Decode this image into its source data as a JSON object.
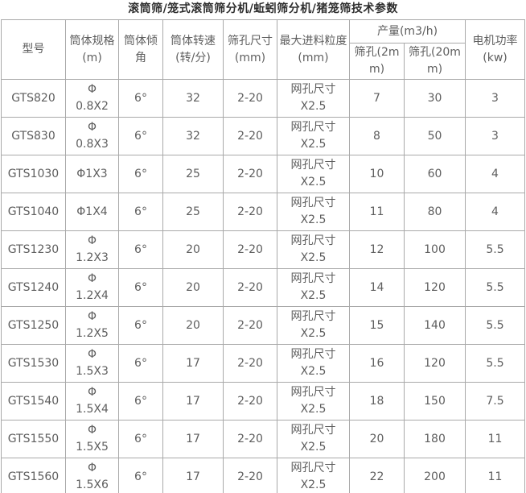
{
  "title": "滚筒筛/笼式滚筒筛分机/蚯蚓筛分机/猪笼筛技术参数",
  "table": {
    "headers": {
      "model": "型号",
      "spec": "筒体规格(m)",
      "incline": "筒体倾角",
      "speed": "筒体转速(转/分)",
      "hole": "筛孔尺寸(mm)",
      "feed": "最大进料粒度(mm)",
      "output_group": "产量(m3/h)",
      "output_2mm": "筛孔(2mm)",
      "output_20mm": "筛孔(20mm)",
      "power": "电机功率(kw)"
    },
    "rows": [
      {
        "model": "GTS820",
        "spec": "Φ\n0.8X2",
        "incline": "6°",
        "speed": "32",
        "hole": "2-20",
        "feed": "网孔尺寸\nX2.5",
        "out2": "7",
        "out20": "30",
        "power": "3"
      },
      {
        "model": "GTS830",
        "spec": "Φ\n0.8X3",
        "incline": "6°",
        "speed": "32",
        "hole": "2-20",
        "feed": "网孔尺寸\nX2.5",
        "out2": "8",
        "out20": "50",
        "power": "3"
      },
      {
        "model": "GTS1030",
        "spec": "Φ1X3",
        "incline": "6°",
        "speed": "25",
        "hole": "2-20",
        "feed": "网孔尺寸\nX2.5",
        "out2": "10",
        "out20": "60",
        "power": "4"
      },
      {
        "model": "GTS1040",
        "spec": "Φ1X4",
        "incline": "6°",
        "speed": "25",
        "hole": "2-20",
        "feed": "网孔尺寸\nX2.5",
        "out2": "11",
        "out20": "80",
        "power": "4"
      },
      {
        "model": "GTS1230",
        "spec": "Φ\n1.2X3",
        "incline": "6°",
        "speed": "20",
        "hole": "2-20",
        "feed": "网孔尺寸\nX2.5",
        "out2": "12",
        "out20": "100",
        "power": "5.5"
      },
      {
        "model": "GTS1240",
        "spec": "Φ\n1.2X4",
        "incline": "6°",
        "speed": "20",
        "hole": "2-20",
        "feed": "网孔尺寸\nX2.5",
        "out2": "14",
        "out20": "120",
        "power": "5.5"
      },
      {
        "model": "GTS1250",
        "spec": "Φ\n1.2X5",
        "incline": "6°",
        "speed": "20",
        "hole": "2-20",
        "feed": "网孔尺寸\nX2.5",
        "out2": "15",
        "out20": "140",
        "power": "5.5"
      },
      {
        "model": "GTS1530",
        "spec": "Φ\n1.5X3",
        "incline": "6°",
        "speed": "17",
        "hole": "2-20",
        "feed": "网孔尺寸\nX2.5",
        "out2": "16",
        "out20": "120",
        "power": "5.5"
      },
      {
        "model": "GTS1540",
        "spec": "Φ\n1.5X4",
        "incline": "6°",
        "speed": "17",
        "hole": "2-20",
        "feed": "网孔尺寸\nX2.5",
        "out2": "18",
        "out20": "150",
        "power": "7.5"
      },
      {
        "model": "GTS1550",
        "spec": "Φ\n1.5X5",
        "incline": "6°",
        "speed": "17",
        "hole": "2-20",
        "feed": "网孔尺寸\nX2.5",
        "out2": "20",
        "out20": "180",
        "power": "11"
      },
      {
        "model": "GTS1560",
        "spec": "Φ\n1.5X6",
        "incline": "6°",
        "speed": "17",
        "hole": "2-20",
        "feed": "网孔尺寸\nX2.5",
        "out2": "22",
        "out20": "200",
        "power": "11"
      }
    ]
  }
}
